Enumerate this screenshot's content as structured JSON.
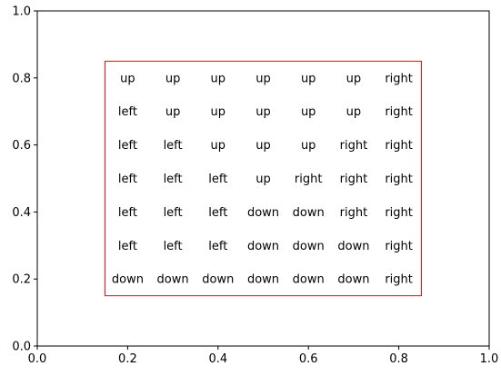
{
  "chart_data": {
    "type": "table",
    "title": "",
    "xlabel": "",
    "ylabel": "",
    "xlim": [
      0,
      1
    ],
    "ylim": [
      0,
      1
    ],
    "x_ticks": [
      "0.0",
      "0.2",
      "0.4",
      "0.6",
      "0.8",
      "1.0"
    ],
    "y_ticks": [
      "0.0",
      "0.2",
      "0.4",
      "0.6",
      "0.8",
      "1.0"
    ],
    "grid": false,
    "box": {
      "x0": 0.15,
      "x1": 0.85,
      "y0": 0.15,
      "y1": 0.85,
      "color": "#ff0000"
    },
    "cell_x": [
      0.2,
      0.3,
      0.4,
      0.5,
      0.6,
      0.7,
      0.8
    ],
    "cell_y": [
      0.8,
      0.7,
      0.6,
      0.5,
      0.4,
      0.3,
      0.2
    ],
    "cells": [
      [
        "up",
        "up",
        "up",
        "up",
        "up",
        "up",
        "right"
      ],
      [
        "left",
        "up",
        "up",
        "up",
        "up",
        "up",
        "right"
      ],
      [
        "left",
        "left",
        "up",
        "up",
        "up",
        "right",
        "right"
      ],
      [
        "left",
        "left",
        "left",
        "up",
        "right",
        "right",
        "right"
      ],
      [
        "left",
        "left",
        "left",
        "down",
        "down",
        "right",
        "right"
      ],
      [
        "left",
        "left",
        "left",
        "down",
        "down",
        "down",
        "right"
      ],
      [
        "down",
        "down",
        "down",
        "down",
        "down",
        "down",
        "right"
      ]
    ]
  }
}
